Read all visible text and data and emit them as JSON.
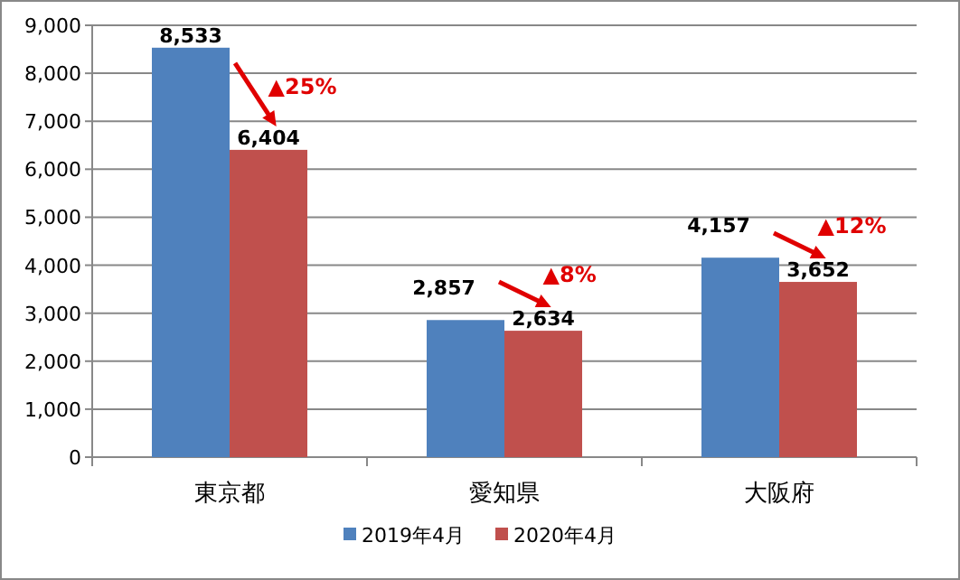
{
  "chart_data": {
    "type": "bar",
    "categories": [
      "東京都",
      "愛知県",
      "大阪府"
    ],
    "series": [
      {
        "name": "2019年4月",
        "color": "#4f81bd",
        "values": [
          8533,
          2857,
          4157
        ],
        "value_labels": [
          "8,533",
          "2,857",
          "4,157"
        ]
      },
      {
        "name": "2020年4月",
        "color": "#c0504d",
        "values": [
          6404,
          2634,
          3652
        ],
        "value_labels": [
          "6,404",
          "2,634",
          "3,652"
        ]
      }
    ],
    "ylim": [
      0,
      9000
    ],
    "yticks": [
      {
        "value": 0,
        "label": "0"
      },
      {
        "value": 1000,
        "label": "1,000"
      },
      {
        "value": 2000,
        "label": "2,000"
      },
      {
        "value": 3000,
        "label": "3,000"
      },
      {
        "value": 4000,
        "label": "4,000"
      },
      {
        "value": 5000,
        "label": "5,000"
      },
      {
        "value": 6000,
        "label": "6,000"
      },
      {
        "value": 7000,
        "label": "7,000"
      },
      {
        "value": 8000,
        "label": "8,000"
      },
      {
        "value": 9000,
        "label": "9,000"
      }
    ],
    "grid": "y",
    "legend": "bottom",
    "annotations": [
      {
        "text": "▲25%",
        "x": "東京都",
        "y": 6404
      },
      {
        "text": "▲8%",
        "x": "愛知県",
        "y": 2634
      },
      {
        "text": "▲12%",
        "x": "大阪府",
        "y": 3652
      }
    ]
  }
}
